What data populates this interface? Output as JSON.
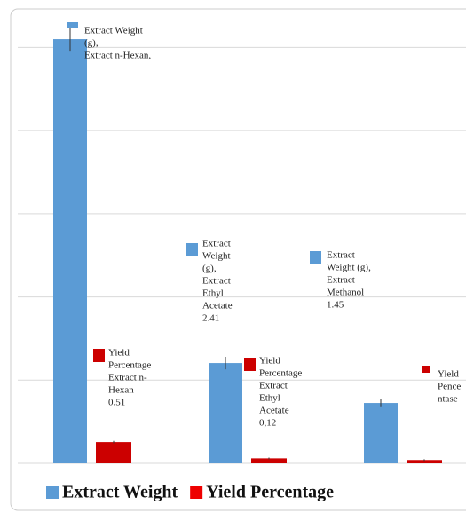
{
  "chart_data": {
    "type": "bar",
    "categories": [
      null,
      null,
      null
    ],
    "series": [
      {
        "name": "Extract Weight",
        "color": "#5b9bd5",
        "values": [
          10.2,
          2.41,
          1.45
        ],
        "errors": [
          0.3,
          0.15,
          0.1
        ]
      },
      {
        "name": "Yield Percentage",
        "color": "#cc0000",
        "values": [
          0.51,
          0.12,
          0.08
        ],
        "errors": [
          0.03,
          0.02,
          0.02
        ]
      }
    ],
    "ylim": [
      0,
      10.5
    ],
    "yticks": [
      0,
      2,
      4,
      6,
      8,
      10
    ],
    "grid": true,
    "legend": "bottom",
    "annotations": [
      {
        "series": 0,
        "lines": [
          "Extract Weight",
          "(g),",
          "Extract n-Hexan,"
        ]
      },
      {
        "series": 0,
        "lines": [
          "Extract",
          "Weight",
          "(g),",
          "Extract",
          "Ethyl",
          "Acetate",
          "2.41"
        ]
      },
      {
        "series": 0,
        "lines": [
          "Extract",
          "Weight (g),",
          "Extract",
          "Methanol",
          "1.45"
        ]
      },
      {
        "series": 1,
        "lines": [
          "Yield",
          "Percentage",
          "Extract n-",
          "Hexan",
          "0.51"
        ]
      },
      {
        "series": 1,
        "lines": [
          "Yield",
          "Percentage",
          "Extract",
          "Ethyl",
          "Acetate",
          "0,12"
        ]
      },
      {
        "series": 1,
        "lines": [
          "Yield",
          "Pence",
          "ntase"
        ]
      }
    ]
  }
}
